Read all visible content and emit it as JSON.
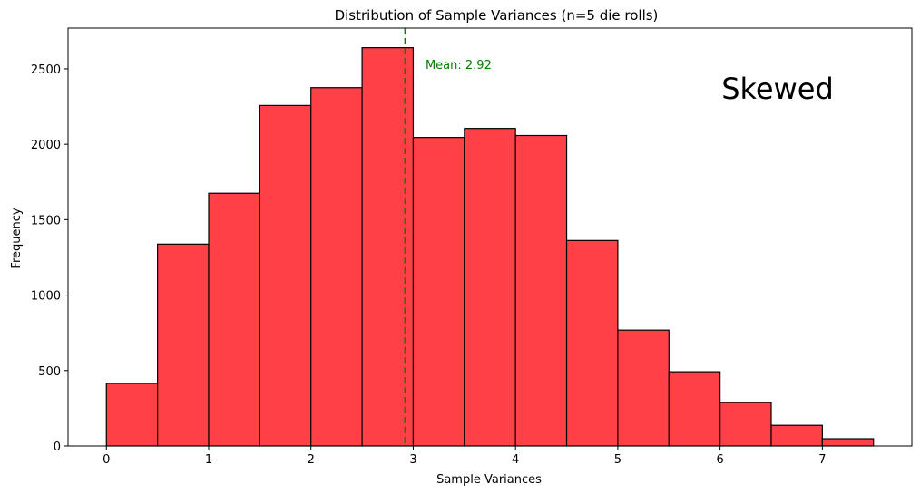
{
  "chart_data": {
    "type": "bar",
    "title": "Distribution of Sample Variances (n=5 die rolls)",
    "xlabel": "Sample Variances",
    "ylabel": "Frequency",
    "xlim": [
      -0.375,
      7.875
    ],
    "ylim": [
      0,
      2770
    ],
    "xticks": [
      0,
      1,
      2,
      3,
      4,
      5,
      6,
      7
    ],
    "yticks": [
      0,
      500,
      1000,
      1500,
      2000,
      2500
    ],
    "bins": [
      {
        "start": 0.0,
        "end": 0.5,
        "value": 415
      },
      {
        "start": 0.5,
        "end": 1.0,
        "value": 1338
      },
      {
        "start": 1.0,
        "end": 1.5,
        "value": 1675
      },
      {
        "start": 1.5,
        "end": 2.0,
        "value": 2257
      },
      {
        "start": 2.0,
        "end": 2.5,
        "value": 2375
      },
      {
        "start": 2.5,
        "end": 3.0,
        "value": 2640
      },
      {
        "start": 3.0,
        "end": 3.5,
        "value": 2045
      },
      {
        "start": 3.5,
        "end": 4.0,
        "value": 2105
      },
      {
        "start": 4.0,
        "end": 4.5,
        "value": 2058
      },
      {
        "start": 4.5,
        "end": 5.0,
        "value": 1362
      },
      {
        "start": 5.0,
        "end": 5.5,
        "value": 768
      },
      {
        "start": 5.5,
        "end": 6.0,
        "value": 492
      },
      {
        "start": 6.0,
        "end": 6.5,
        "value": 288
      },
      {
        "start": 6.5,
        "end": 7.0,
        "value": 137
      },
      {
        "start": 7.0,
        "end": 7.5,
        "value": 48
      }
    ],
    "mean": 2.92,
    "mean_label": "Mean: 2.92",
    "annotation": "Skewed",
    "grid": false,
    "colors": {
      "bar_fill": "#ff4046",
      "bar_edge": "#000000",
      "mean_line": "#008000",
      "mean_text": "#008000"
    }
  }
}
